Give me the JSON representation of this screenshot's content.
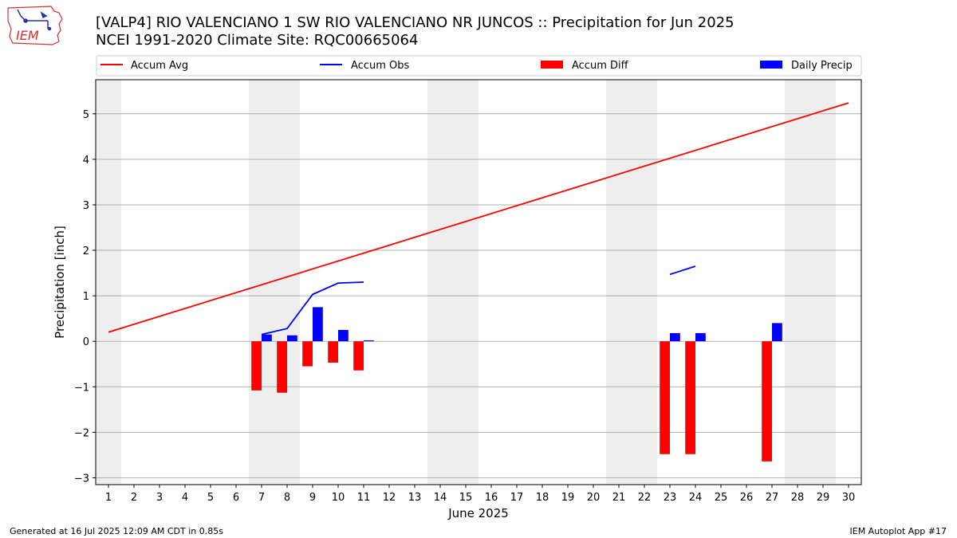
{
  "header": {
    "title_line1": "[VALP4] RIO VALENCIANO 1 SW RIO VALENCIANO NR JUNCOS :: Precipitation for Jun 2025",
    "title_line2": "NCEI 1991-2020 Climate Site: RQC00665064",
    "logo_text": "IEM"
  },
  "footer": {
    "left": "Generated at 16 Jul 2025 12:09 AM CDT in 0.85s",
    "right": "IEM Autoplot App #17"
  },
  "colors": {
    "accum_avg": "#ff0000",
    "accum_obs": "#0000ff",
    "accum_diff": "#ff0000",
    "daily_precip": "#0000ff",
    "weekend_band": "#eeeeee",
    "grid": "#b0b0b0"
  },
  "chart_data": {
    "type": "bar",
    "xlabel": "June 2025",
    "ylabel": "Precipitation [inch]",
    "xlim": [
      0.5,
      30.5
    ],
    "ylim": [
      -3.15,
      5.75
    ],
    "x_ticks": [
      1,
      2,
      3,
      4,
      5,
      6,
      7,
      8,
      9,
      10,
      11,
      12,
      13,
      14,
      15,
      16,
      17,
      18,
      19,
      20,
      21,
      22,
      23,
      24,
      25,
      26,
      27,
      28,
      29,
      30
    ],
    "y_ticks": [
      -3,
      -2,
      -1,
      0,
      1,
      2,
      3,
      4,
      5
    ],
    "y_tick_labels": [
      "−3",
      "−2",
      "−1",
      "0",
      "1",
      "2",
      "3",
      "4",
      "5"
    ],
    "grid": "horizontal",
    "legend_position": "top",
    "legend": [
      "Accum Avg",
      "Accum Obs",
      "Accum Diff",
      "Daily Precip"
    ],
    "weekend_days": [
      1,
      7,
      8,
      14,
      15,
      21,
      22,
      28,
      29
    ],
    "accum_avg": {
      "name": "Accum Avg",
      "x": [
        1,
        30
      ],
      "y": [
        0.2,
        5.24
      ]
    },
    "accum_obs": {
      "name": "Accum Obs",
      "segments": [
        {
          "x": [
            7,
            8,
            9,
            10,
            11
          ],
          "y": [
            0.15,
            0.28,
            1.03,
            1.28,
            1.3
          ]
        },
        {
          "x": [
            23,
            24
          ],
          "y": [
            1.47,
            1.65
          ]
        }
      ]
    },
    "accum_diff": {
      "name": "Accum Diff",
      "x": [
        7,
        8,
        9,
        10,
        11,
        23,
        24,
        27
      ],
      "y": [
        -1.08,
        -1.13,
        -0.55,
        -0.47,
        -0.64,
        -2.48,
        -2.48,
        -2.64
      ]
    },
    "daily_precip": {
      "name": "Daily Precip",
      "x": [
        7,
        8,
        9,
        10,
        11,
        23,
        24,
        27
      ],
      "y": [
        0.15,
        0.13,
        0.75,
        0.25,
        0.02,
        0.18,
        0.18,
        0.4
      ]
    }
  }
}
